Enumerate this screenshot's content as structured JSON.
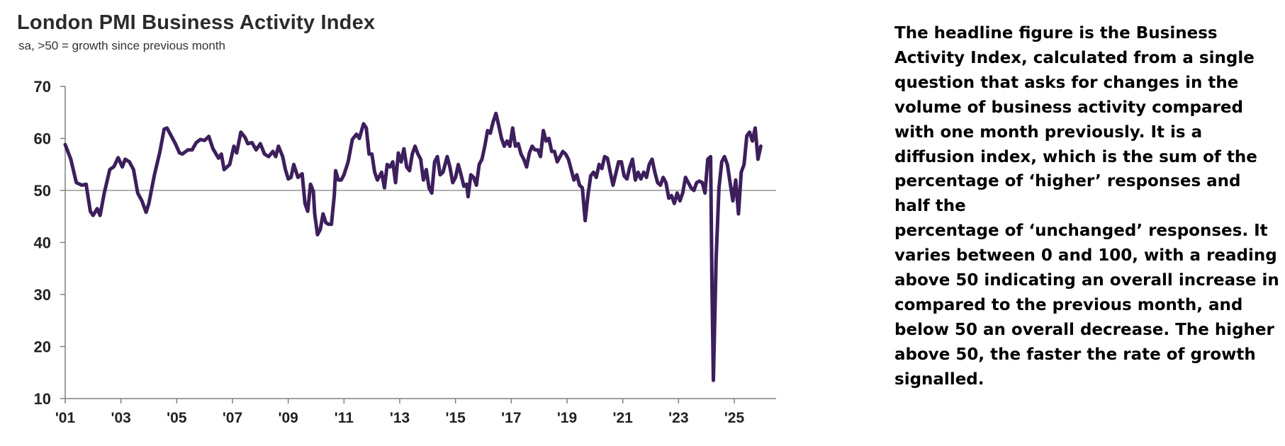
{
  "header": {
    "title": "London PMI Business Activity Index",
    "subtitle": "sa, >50 = growth  since previous  month"
  },
  "description": {
    "lines": [
      "The headline figure is the Business",
      "Activity Index, calculated from a single",
      "question that asks for changes in the",
      "volume of business activity compared",
      "with one month previously. It is a",
      "diffusion index, which is the sum of the",
      "percentage of ‘higher’ responses and",
      "half the",
      "percentage of ‘unchanged’ responses. It",
      "varies between 0 and 100, with a reading",
      "above 50 indicating an overall increase in",
      "compared to the previous month, and",
      "below 50 an overall decrease. The higher",
      "above 50, the faster the rate of growth",
      "signalled."
    ]
  },
  "colors": {
    "line": "#3d1f5c",
    "axis": "#808080",
    "text": "#222222"
  },
  "chart_data": {
    "type": "line",
    "title": "London PMI Business Activity Index",
    "subtitle": "sa, >50 = growth  since previous  month",
    "xlabel": "",
    "ylabel": "",
    "ylim": [
      10,
      70
    ],
    "xlim": [
      2001.0,
      2026.0
    ],
    "yticks": [
      70,
      60,
      50,
      40,
      30,
      20,
      10
    ],
    "xticks": [
      {
        "label": "'01",
        "value": 2001
      },
      {
        "label": "'03",
        "value": 2003
      },
      {
        "label": "'05",
        "value": 2005
      },
      {
        "label": "'07",
        "value": 2007
      },
      {
        "label": "'09",
        "value": 2009
      },
      {
        "label": "'11",
        "value": 2011
      },
      {
        "label": "'13",
        "value": 2013
      },
      {
        "label": "'15",
        "value": 2015
      },
      {
        "label": "'17",
        "value": 2017
      },
      {
        "label": "'19",
        "value": 2019
      },
      {
        "label": "'21",
        "value": 2021
      },
      {
        "label": "'23",
        "value": 2023
      },
      {
        "label": "'25",
        "value": 2025
      }
    ],
    "reference_line": 50,
    "grid": false,
    "legend": "none",
    "series": [
      {
        "points": [
          [
            2001.0,
            58.8
          ],
          [
            2001.2,
            56.0
          ],
          [
            2001.4,
            51.5
          ],
          [
            2001.6,
            51.0
          ],
          [
            2001.75,
            51.2
          ],
          [
            2001.9,
            46.0
          ],
          [
            2002.0,
            45.2
          ],
          [
            2002.15,
            46.5
          ],
          [
            2002.25,
            45.2
          ],
          [
            2002.4,
            49.5
          ],
          [
            2002.6,
            54.0
          ],
          [
            2002.75,
            54.6
          ],
          [
            2002.9,
            56.3
          ],
          [
            2003.05,
            54.5
          ],
          [
            2003.15,
            56.0
          ],
          [
            2003.3,
            55.5
          ],
          [
            2003.45,
            54.0
          ],
          [
            2003.6,
            49.5
          ],
          [
            2003.75,
            48.0
          ],
          [
            2003.9,
            45.8
          ],
          [
            2004.0,
            47.5
          ],
          [
            2004.2,
            53.0
          ],
          [
            2004.4,
            57.5
          ],
          [
            2004.55,
            61.8
          ],
          [
            2004.65,
            62.0
          ],
          [
            2004.8,
            60.5
          ],
          [
            2004.95,
            59.0
          ],
          [
            2005.1,
            57.2
          ],
          [
            2005.2,
            57.0
          ],
          [
            2005.4,
            57.8
          ],
          [
            2005.55,
            57.8
          ],
          [
            2005.7,
            59.2
          ],
          [
            2005.85,
            59.8
          ],
          [
            2006.0,
            59.6
          ],
          [
            2006.15,
            60.4
          ],
          [
            2006.3,
            58.0
          ],
          [
            2006.5,
            56.2
          ],
          [
            2006.6,
            57.0
          ],
          [
            2006.7,
            54.0
          ],
          [
            2006.9,
            55.0
          ],
          [
            2007.05,
            58.5
          ],
          [
            2007.15,
            57.2
          ],
          [
            2007.3,
            61.2
          ],
          [
            2007.45,
            60.2
          ],
          [
            2007.55,
            59.0
          ],
          [
            2007.7,
            59.2
          ],
          [
            2007.85,
            57.8
          ],
          [
            2008.0,
            59.0
          ],
          [
            2008.15,
            57.0
          ],
          [
            2008.3,
            56.5
          ],
          [
            2008.45,
            57.5
          ],
          [
            2008.55,
            56.5
          ],
          [
            2008.65,
            58.5
          ],
          [
            2008.8,
            56.5
          ],
          [
            2008.9,
            54.0
          ],
          [
            2009.0,
            52.2
          ],
          [
            2009.1,
            52.5
          ],
          [
            2009.2,
            55.0
          ],
          [
            2009.35,
            52.5
          ],
          [
            2009.5,
            53.2
          ],
          [
            2009.6,
            47.5
          ],
          [
            2009.7,
            46.0
          ],
          [
            2009.8,
            51.2
          ],
          [
            2009.9,
            49.8
          ],
          [
            2009.95,
            45.5
          ],
          [
            2010.05,
            41.5
          ],
          [
            2010.15,
            42.5
          ],
          [
            2010.25,
            45.5
          ],
          [
            2010.35,
            43.8
          ],
          [
            2010.45,
            43.5
          ],
          [
            2010.55,
            43.5
          ],
          [
            2010.65,
            49.0
          ],
          [
            2010.7,
            53.8
          ],
          [
            2010.8,
            52.0
          ],
          [
            2010.9,
            52.0
          ],
          [
            2011.0,
            53.0
          ],
          [
            2011.15,
            55.5
          ],
          [
            2011.3,
            59.8
          ],
          [
            2011.45,
            60.8
          ],
          [
            2011.55,
            60.0
          ],
          [
            2011.7,
            62.8
          ],
          [
            2011.8,
            62.0
          ],
          [
            2011.9,
            57.0
          ],
          [
            2012.0,
            57.0
          ],
          [
            2012.1,
            53.5
          ],
          [
            2012.2,
            52.0
          ],
          [
            2012.35,
            53.5
          ],
          [
            2012.45,
            50.5
          ],
          [
            2012.55,
            55.0
          ],
          [
            2012.65,
            54.5
          ],
          [
            2012.75,
            55.5
          ],
          [
            2012.85,
            51.5
          ],
          [
            2012.95,
            57.2
          ],
          [
            2013.05,
            55.5
          ],
          [
            2013.15,
            58.0
          ],
          [
            2013.25,
            54.5
          ],
          [
            2013.35,
            53.8
          ],
          [
            2013.45,
            57.0
          ],
          [
            2013.55,
            58.5
          ],
          [
            2013.65,
            57.0
          ],
          [
            2013.75,
            56.0
          ],
          [
            2013.85,
            52.0
          ],
          [
            2013.95,
            54.0
          ],
          [
            2014.05,
            50.5
          ],
          [
            2014.15,
            49.5
          ],
          [
            2014.25,
            55.5
          ],
          [
            2014.35,
            56.5
          ],
          [
            2014.45,
            53.0
          ],
          [
            2014.55,
            53.5
          ],
          [
            2014.7,
            56.5
          ],
          [
            2014.8,
            54.5
          ],
          [
            2014.9,
            51.5
          ],
          [
            2015.0,
            52.5
          ],
          [
            2015.1,
            55.0
          ],
          [
            2015.2,
            53.0
          ],
          [
            2015.3,
            50.8
          ],
          [
            2015.4,
            51.2
          ],
          [
            2015.45,
            48.8
          ],
          [
            2015.55,
            53.0
          ],
          [
            2015.65,
            52.5
          ],
          [
            2015.75,
            51.0
          ],
          [
            2015.85,
            55.0
          ],
          [
            2015.95,
            56.0
          ],
          [
            2016.05,
            58.5
          ],
          [
            2016.15,
            61.5
          ],
          [
            2016.25,
            61.0
          ],
          [
            2016.35,
            63.2
          ],
          [
            2016.45,
            64.8
          ],
          [
            2016.55,
            62.5
          ],
          [
            2016.65,
            60.0
          ],
          [
            2016.75,
            58.5
          ],
          [
            2016.85,
            59.5
          ],
          [
            2016.95,
            58.5
          ],
          [
            2017.05,
            62.0
          ],
          [
            2017.15,
            58.5
          ],
          [
            2017.25,
            59.0
          ],
          [
            2017.35,
            57.0
          ],
          [
            2017.45,
            56.0
          ],
          [
            2017.55,
            54.5
          ],
          [
            2017.65,
            57.2
          ],
          [
            2017.75,
            58.5
          ],
          [
            2017.85,
            57.8
          ],
          [
            2017.95,
            57.8
          ],
          [
            2018.05,
            56.5
          ],
          [
            2018.15,
            61.5
          ],
          [
            2018.25,
            59.5
          ],
          [
            2018.35,
            60.0
          ],
          [
            2018.45,
            57.5
          ],
          [
            2018.55,
            57.5
          ],
          [
            2018.65,
            55.5
          ],
          [
            2018.75,
            56.5
          ],
          [
            2018.85,
            57.5
          ],
          [
            2018.95,
            57.0
          ],
          [
            2019.05,
            56.0
          ],
          [
            2019.15,
            54.0
          ],
          [
            2019.25,
            52.0
          ],
          [
            2019.35,
            53.0
          ],
          [
            2019.45,
            51.0
          ],
          [
            2019.55,
            50.5
          ],
          [
            2019.65,
            44.2
          ],
          [
            2019.75,
            49.0
          ],
          [
            2019.85,
            52.8
          ],
          [
            2019.95,
            53.5
          ],
          [
            2020.05,
            52.5
          ],
          [
            2020.15,
            55.0
          ],
          [
            2020.25,
            54.2
          ],
          [
            2020.35,
            56.5
          ],
          [
            2020.45,
            56.2
          ],
          [
            2020.55,
            53.5
          ],
          [
            2020.65,
            51.0
          ],
          [
            2020.75,
            53.2
          ],
          [
            2020.85,
            55.5
          ],
          [
            2020.95,
            55.5
          ],
          [
            2021.05,
            52.8
          ],
          [
            2021.15,
            52.2
          ],
          [
            2021.25,
            54.5
          ],
          [
            2021.35,
            56.0
          ],
          [
            2021.45,
            52.0
          ],
          [
            2021.55,
            53.5
          ],
          [
            2021.65,
            52.2
          ],
          [
            2021.75,
            53.5
          ],
          [
            2021.85,
            52.5
          ],
          [
            2021.95,
            55.0
          ],
          [
            2022.05,
            56.0
          ],
          [
            2022.15,
            53.5
          ],
          [
            2022.25,
            51.5
          ],
          [
            2022.35,
            51.0
          ],
          [
            2022.45,
            52.5
          ],
          [
            2022.55,
            51.5
          ],
          [
            2022.65,
            48.5
          ],
          [
            2022.75,
            49.0
          ],
          [
            2022.85,
            47.5
          ],
          [
            2022.95,
            49.5
          ],
          [
            2023.05,
            48.0
          ],
          [
            2023.15,
            49.5
          ],
          [
            2023.25,
            52.5
          ],
          [
            2023.35,
            51.5
          ],
          [
            2023.45,
            50.5
          ],
          [
            2023.55,
            50.0
          ],
          [
            2023.65,
            51.5
          ],
          [
            2023.75,
            51.8
          ],
          [
            2023.85,
            51.5
          ],
          [
            2023.95,
            49.5
          ],
          [
            2024.05,
            56.0
          ],
          [
            2024.15,
            56.5
          ],
          [
            2024.2,
            32.0
          ],
          [
            2024.25,
            13.5
          ],
          [
            2024.35,
            37.0
          ],
          [
            2024.45,
            50.5
          ],
          [
            2024.55,
            55.5
          ],
          [
            2024.65,
            56.5
          ],
          [
            2024.75,
            55.0
          ],
          [
            2024.85,
            51.5
          ],
          [
            2024.95,
            48.0
          ],
          [
            2025.05,
            52.0
          ],
          [
            2025.15,
            45.5
          ],
          [
            2025.25,
            53.5
          ],
          [
            2025.35,
            55.0
          ],
          [
            2025.45,
            60.5
          ],
          [
            2025.55,
            61.2
          ],
          [
            2025.65,
            59.5
          ],
          [
            2025.75,
            62.0
          ],
          [
            2025.85,
            56.0
          ],
          [
            2025.95,
            58.5
          ]
        ]
      }
    ]
  }
}
